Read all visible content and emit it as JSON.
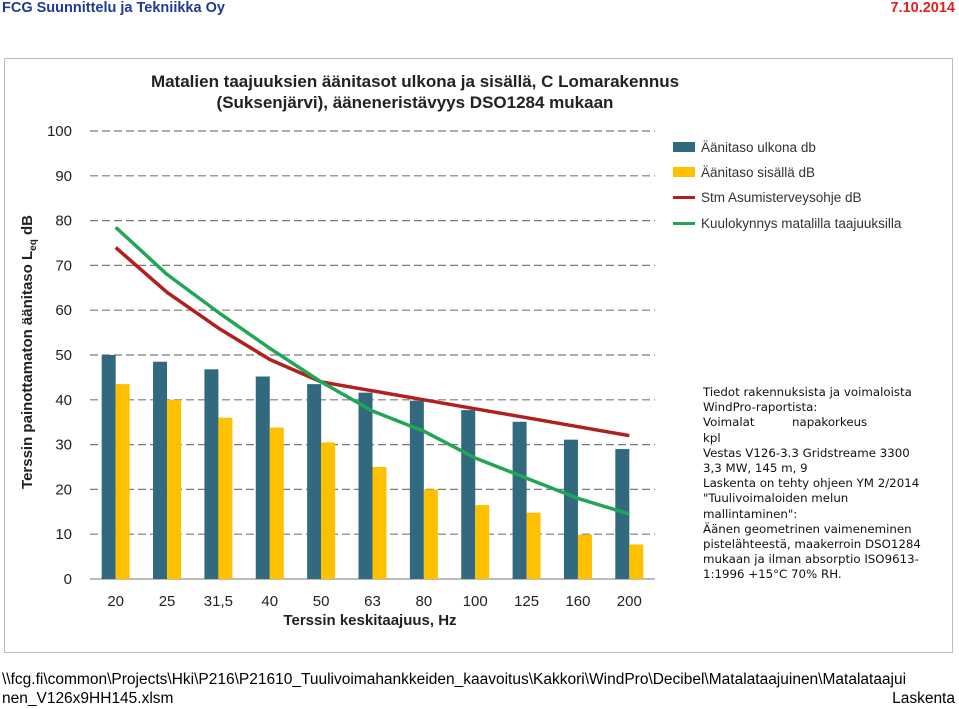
{
  "header": {
    "company": "FCG Suunnittelu ja Tekniikka Oy",
    "date": "7.10.2014"
  },
  "colors": {
    "outdoor": "#31697f",
    "indoor": "#ffc000",
    "guideline": "#b21f1f",
    "hearing": "#21a656",
    "company": "#1f3a93",
    "date": "#e02020"
  },
  "chart_data": {
    "type": "bar",
    "title_line1": "Matalien taajuuksien äänitasot ulkona ja sisällä, C Lomarakennus",
    "title_line2": "(Suksenjärvi), ääneneristävyys DSO1284 mukaan",
    "ylabel_main": "Terssin painottamaton äänitaso L",
    "ylabel_sub": "eq",
    "ylabel_unit": " dB",
    "xlabel": "Terssin keskitaajuus, Hz",
    "ylim": [
      0,
      100
    ],
    "yticks": [
      "0",
      "10",
      "20",
      "30",
      "40",
      "50",
      "60",
      "70",
      "80",
      "90",
      "100"
    ],
    "grid": "dashed horizontal",
    "legend_position": "right",
    "categories": [
      "20",
      "25",
      "31,5",
      "40",
      "50",
      "63",
      "80",
      "100",
      "125",
      "160",
      "200"
    ],
    "series": [
      {
        "name": "Äänitaso ulkona db",
        "kind": "bar",
        "values": [
          50.0,
          48.5,
          46.8,
          45.2,
          43.5,
          41.6,
          39.8,
          37.7,
          35.1,
          31.1,
          29.0
        ]
      },
      {
        "name": "Äänitaso sisällä dB",
        "kind": "bar",
        "values": [
          43.5,
          40.0,
          36.0,
          33.8,
          30.5,
          25.0,
          20.0,
          16.5,
          14.8,
          9.9,
          7.7
        ]
      },
      {
        "name": "Stm Asumisterveysohje dB",
        "kind": "line",
        "values": [
          74.0,
          64.0,
          56.0,
          49.0,
          44.0,
          42.0,
          40.0,
          38.0,
          36.0,
          34.0,
          32.0
        ]
      },
      {
        "name": "Kuulokynnys matalilla taajuuksilla",
        "kind": "line",
        "values": [
          78.5,
          68.0,
          59.5,
          51.5,
          44.0,
          37.5,
          33.0,
          27.0,
          22.5,
          18.0,
          14.5
        ]
      }
    ]
  },
  "info_lines": [
    "Tiedot rakennuksista ja voimaloista",
    "WindPro-raportista:",
    "Voimalat          napakorkeus",
    "kpl",
    "Vestas V126-3.3 Gridstreame 3300",
    "3,3 MW, 145 m, 9",
    "Laskenta on tehty ohjeen YM 2/2014",
    "\"Tuulivoimaloiden melun",
    "mallintaminen\":",
    "Äänen geometrinen vaimeneminen",
    "pistelähteestä, maakerroin DSO1284",
    "mukaan ja ilman absorptio ISO9613-",
    "1:1996 +15°C 70% RH."
  ],
  "footer": {
    "path_line1": "\\\\fcg.fi\\common\\Projects\\Hki\\P216\\P21610_Tuulivoimahankkeiden_kaavoitus\\Kakkori\\WindPro\\Decibel\\Matalataajuinen\\Matalataajui",
    "path_line2": "nen_V126x9HH145.xlsm",
    "right_label": "Laskenta"
  }
}
